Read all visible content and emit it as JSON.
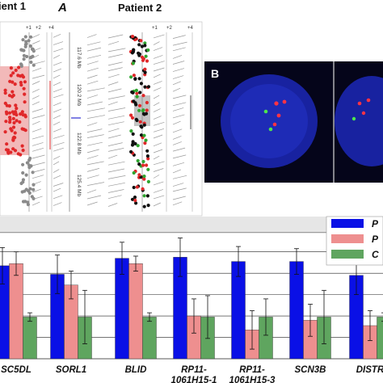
{
  "colors": {
    "red_dot": "#e0282a",
    "green_dot": "#2fa52f",
    "black_dot": "#111111",
    "gray_dot": "#8a8a8a",
    "amp_shade": "#f2b9b9",
    "gray_shade": "#c4c4c4",
    "nucleus_bg": "#05051a",
    "nucleus": "#1c28b8",
    "bar_blue": "#0a10e6",
    "bar_red": "#ee8f8f",
    "bar_green": "#5fa55f",
    "chart_band": "#e6e6e6"
  },
  "panelA": {
    "patient1_label": "ient 1",
    "panel_letter": "A",
    "patient2_label": "Patient 2",
    "scale_marks": [
      "+1",
      "+2",
      "+4"
    ],
    "positions": [
      "117.6 Mb",
      "120.2 Mb",
      "122.8 Mb",
      "125.4 Mb"
    ]
  },
  "panelB": {
    "letter": "B"
  },
  "chart_data": {
    "type": "bar",
    "categories": [
      "SC5DL",
      "SORL1",
      "BLID",
      "RP11-\n1061H15-1",
      "RP11-\n1061H15-3",
      "SCN3B",
      "DISTR"
    ],
    "category_lines": [
      [
        "SC5DL"
      ],
      [
        "SORL1"
      ],
      [
        "BLID"
      ],
      [
        "RP11-",
        "1061H15-1"
      ],
      [
        "RP11-",
        "1061H15-3"
      ],
      [
        "SCN3B"
      ],
      [
        "DISTR"
      ]
    ],
    "legend_labels": [
      "P",
      "P",
      "C"
    ],
    "series": [
      {
        "values": [
          4.35,
          3.95,
          4.7,
          4.75,
          4.55,
          4.55,
          3.9
        ],
        "errors": [
          0.85,
          0.9,
          0.75,
          0.9,
          0.7,
          0.6,
          0.9
        ]
      },
      {
        "values": [
          4.45,
          3.45,
          4.45,
          2.0,
          1.35,
          1.8,
          1.55
        ],
        "errors": [
          0.55,
          0.65,
          0.35,
          0.8,
          0.9,
          0.75,
          0.7
        ]
      },
      {
        "values": [
          1.95,
          1.95,
          1.95,
          1.95,
          1.95,
          1.95,
          1.95
        ],
        "errors": [
          0.2,
          1.25,
          0.2,
          1.0,
          0.85,
          1.25,
          0.2
        ]
      }
    ],
    "ylim": [
      0,
      6.5
    ],
    "grid": true,
    "legend": "top-right"
  }
}
